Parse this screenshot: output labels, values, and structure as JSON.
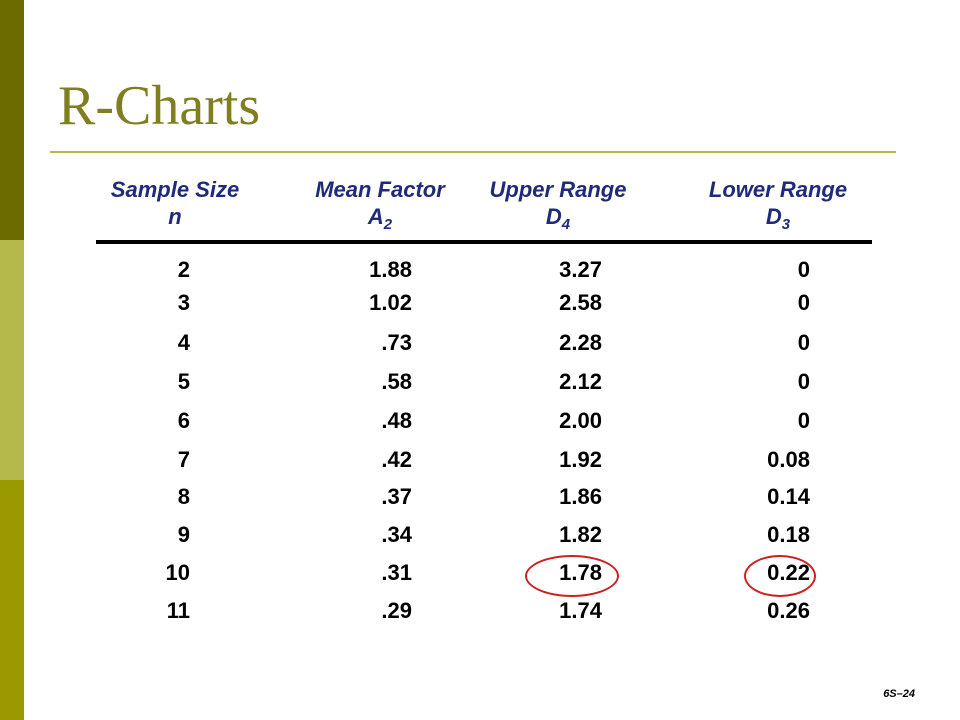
{
  "title": "R-Charts",
  "headers": [
    {
      "line1": "Sample Size",
      "line2": "n",
      "sub": ""
    },
    {
      "line1": "Mean Factor",
      "line2": "A",
      "sub": "2"
    },
    {
      "line1": "Upper Range",
      "line2": "D",
      "sub": "4"
    },
    {
      "line1": "Lower Range",
      "line2": "D",
      "sub": "3"
    }
  ],
  "rows": [
    {
      "n": "2",
      "a2": "1.88",
      "d4": "3.27",
      "d3": "0"
    },
    {
      "n": "3",
      "a2": "1.02",
      "d4": "2.58",
      "d3": "0"
    },
    {
      "n": "4",
      "a2": ".73",
      "d4": "2.28",
      "d3": "0"
    },
    {
      "n": "5",
      "a2": ".58",
      "d4": "2.12",
      "d3": "0"
    },
    {
      "n": "6",
      "a2": ".48",
      "d4": "2.00",
      "d3": "0"
    },
    {
      "n": "7",
      "a2": ".42",
      "d4": "1.92",
      "d3": "0.08"
    },
    {
      "n": "8",
      "a2": ".37",
      "d4": "1.86",
      "d3": "0.14"
    },
    {
      "n": "9",
      "a2": ".34",
      "d4": "1.82",
      "d3": "0.18"
    },
    {
      "n": "10",
      "a2": ".31",
      "d4": "1.78",
      "d3": "0.22"
    },
    {
      "n": "11",
      "a2": ".29",
      "d4": "1.74",
      "d3": "0.26"
    }
  ],
  "highlighted_row": "10",
  "page_number": "6S–24",
  "colors": {
    "stripe_dark": "#6b6b00",
    "stripe_light": "#b5b84a",
    "title": "#7f7f1f",
    "header": "#1f2a7a",
    "highlight": "#cc2222"
  }
}
